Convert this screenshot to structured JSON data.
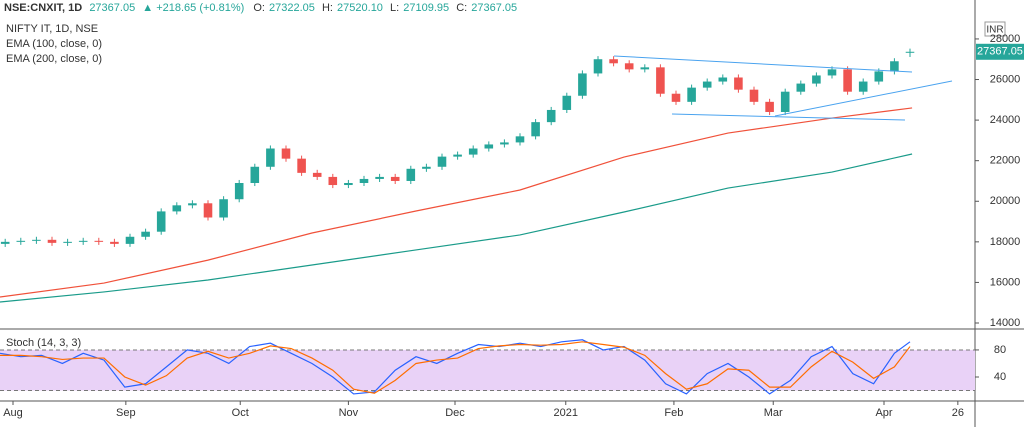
{
  "chart_data": [
    {
      "type": "candlestick",
      "title": "NIFTY IT, 1D, NSE",
      "header": {
        "symbol": "NSE:CNXIT, 1D",
        "last": "27367.05",
        "change": "▲ +218.65 (+0.81%)",
        "ohlc": [
          [
            "O:",
            "27322.05"
          ],
          [
            "H:",
            "27520.10"
          ],
          [
            "L:",
            "27109.95"
          ],
          [
            "C:",
            "27367.05"
          ]
        ]
      },
      "currency": "INR",
      "up_color": "#26a69a",
      "down_color": "#ef5350",
      "x": [
        1,
        4,
        7,
        10,
        13,
        16,
        19,
        22,
        25,
        28,
        31,
        34,
        37,
        40,
        43,
        46,
        49,
        52,
        55,
        58,
        61,
        64,
        67,
        70,
        73,
        76,
        79,
        82,
        85,
        88,
        91,
        94,
        97,
        100,
        103,
        106,
        109,
        112,
        115,
        118,
        121,
        124,
        127,
        130,
        133,
        136,
        139,
        142,
        145,
        148,
        151,
        154,
        157,
        160,
        163,
        166,
        169,
        172,
        175
      ],
      "open": [
        17900,
        18000,
        18050,
        18100,
        17950,
        18000,
        18050,
        18000,
        17900,
        18250,
        18500,
        19500,
        19800,
        19900,
        19200,
        20100,
        20900,
        21700,
        22600,
        22100,
        21400,
        21200,
        20800,
        20900,
        21100,
        21200,
        21000,
        21600,
        21700,
        22200,
        22300,
        22600,
        22800,
        22900,
        23200,
        23900,
        24500,
        25200,
        26300,
        27000,
        26800,
        26500,
        26600,
        25300,
        24900,
        25600,
        25900,
        26100,
        25500,
        24900,
        24400,
        25400,
        25800,
        26200,
        26500,
        25400,
        25900,
        26400,
        27322.05
      ],
      "high": [
        18150,
        18200,
        18250,
        18250,
        18150,
        18200,
        18200,
        18150,
        18400,
        18650,
        19650,
        19950,
        20050,
        20050,
        20250,
        21050,
        21850,
        22750,
        22750,
        22250,
        21550,
        21350,
        21050,
        21250,
        21350,
        21350,
        21750,
        21850,
        22350,
        22450,
        22750,
        22950,
        23050,
        23350,
        24050,
        24650,
        25350,
        26450,
        27150,
        27150,
        26950,
        26750,
        26750,
        25450,
        25750,
        26050,
        26250,
        26250,
        25650,
        25050,
        25550,
        25950,
        26350,
        26650,
        26650,
        26050,
        26550,
        27050,
        27520.1
      ],
      "low": [
        17750,
        17850,
        17900,
        17800,
        17800,
        17850,
        17850,
        17750,
        17750,
        18100,
        18350,
        19350,
        19650,
        19050,
        19050,
        19950,
        20750,
        21550,
        21950,
        21250,
        21050,
        20650,
        20650,
        20750,
        20950,
        20850,
        20850,
        21450,
        21550,
        22050,
        22150,
        22450,
        22650,
        22750,
        23050,
        23750,
        24350,
        25050,
        26150,
        26650,
        26350,
        26350,
        25150,
        24750,
        24750,
        25450,
        25750,
        25350,
        24750,
        24250,
        24250,
        25250,
        25650,
        26050,
        25250,
        25250,
        25750,
        26250,
        27109.95
      ],
      "close": [
        18000,
        18050,
        18100,
        17950,
        18000,
        18050,
        18000,
        17900,
        18250,
        18500,
        19500,
        19800,
        19900,
        19200,
        20100,
        20900,
        21700,
        22600,
        22100,
        21400,
        21200,
        20800,
        20900,
        21100,
        21200,
        21000,
        21600,
        21700,
        22200,
        22300,
        22600,
        22800,
        22900,
        23200,
        23900,
        24500,
        25200,
        26300,
        27000,
        26800,
        26500,
        26600,
        25300,
        24900,
        25600,
        25900,
        26100,
        25500,
        24900,
        24400,
        25400,
        25800,
        26200,
        26500,
        25400,
        25900,
        26400,
        26900,
        27367.05
      ],
      "overlays": [
        {
          "name": "EMA (100, close, 0)",
          "color": "#f0513a",
          "x": [
            0,
            20,
            40,
            60,
            80,
            100,
            120,
            140,
            160,
            175.4
          ],
          "values": [
            15280,
            15970,
            17100,
            18435,
            19520,
            20555,
            22180,
            23360,
            24100,
            24600
          ]
        },
        {
          "name": "EMA (200, close, 0)",
          "color": "#1a9b8a",
          "x": [
            0,
            20,
            40,
            60,
            80,
            100,
            120,
            140,
            160,
            175.4
          ],
          "values": [
            15035,
            15530,
            16120,
            16860,
            17600,
            18340,
            19470,
            20650,
            21440,
            22330
          ]
        }
      ],
      "xlim": [
        0,
        187.5
      ],
      "ylim": [
        13754,
        29229
      ],
      "yticks": [
        14000,
        16000,
        18000,
        20000,
        22000,
        24000,
        26000,
        28000
      ]
    },
    {
      "type": "line",
      "title": "Stoch (14, 3, 3)",
      "x": [
        0,
        4,
        8,
        12,
        16,
        20,
        24,
        28,
        32,
        36,
        40,
        44,
        48,
        52,
        56,
        60,
        64,
        68,
        72,
        76,
        80,
        84,
        88,
        92,
        96,
        100,
        104,
        108,
        112,
        116,
        120,
        124,
        128,
        132,
        136,
        140,
        144,
        148,
        152,
        156,
        160,
        164,
        168,
        172,
        175
      ],
      "series": [
        {
          "color": "#2962ff",
          "values": [
            75,
            70,
            72,
            60,
            75,
            65,
            25,
            30,
            55,
            80,
            75,
            60,
            85,
            90,
            75,
            60,
            40,
            15,
            18,
            50,
            70,
            60,
            75,
            88,
            85,
            90,
            85,
            92,
            95,
            80,
            85,
            65,
            30,
            15,
            45,
            60,
            40,
            15,
            35,
            70,
            85,
            45,
            30,
            75,
            92
          ]
        },
        {
          "color": "#ff6d00",
          "values": [
            72,
            72,
            70,
            66,
            68,
            68,
            40,
            28,
            42,
            68,
            78,
            68,
            75,
            86,
            82,
            68,
            50,
            22,
            16,
            35,
            60,
            65,
            68,
            82,
            86,
            88,
            87,
            88,
            92,
            88,
            84,
            72,
            45,
            22,
            30,
            52,
            50,
            25,
            25,
            55,
            78,
            62,
            38,
            55,
            85
          ]
        }
      ],
      "band": [
        20,
        80
      ],
      "band_color": "#e9d2f7",
      "xlim": [
        0,
        187.5
      ],
      "ylim": [
        6,
        108
      ],
      "yticks": [
        80,
        40
      ],
      "xticks": [
        {
          "value": 2.5,
          "label": "Aug"
        },
        {
          "value": 24.2,
          "label": "Sep"
        },
        {
          "value": 46.2,
          "label": "Oct"
        },
        {
          "value": 67,
          "label": "Nov"
        },
        {
          "value": 87.5,
          "label": "Dec"
        },
        {
          "value": 108.8,
          "label": "2021"
        },
        {
          "value": 129.6,
          "label": "Feb"
        },
        {
          "value": 148.7,
          "label": "Mar"
        },
        {
          "value": 170,
          "label": "Apr"
        },
        {
          "value": 184.2,
          "label": "26"
        }
      ]
    }
  ]
}
